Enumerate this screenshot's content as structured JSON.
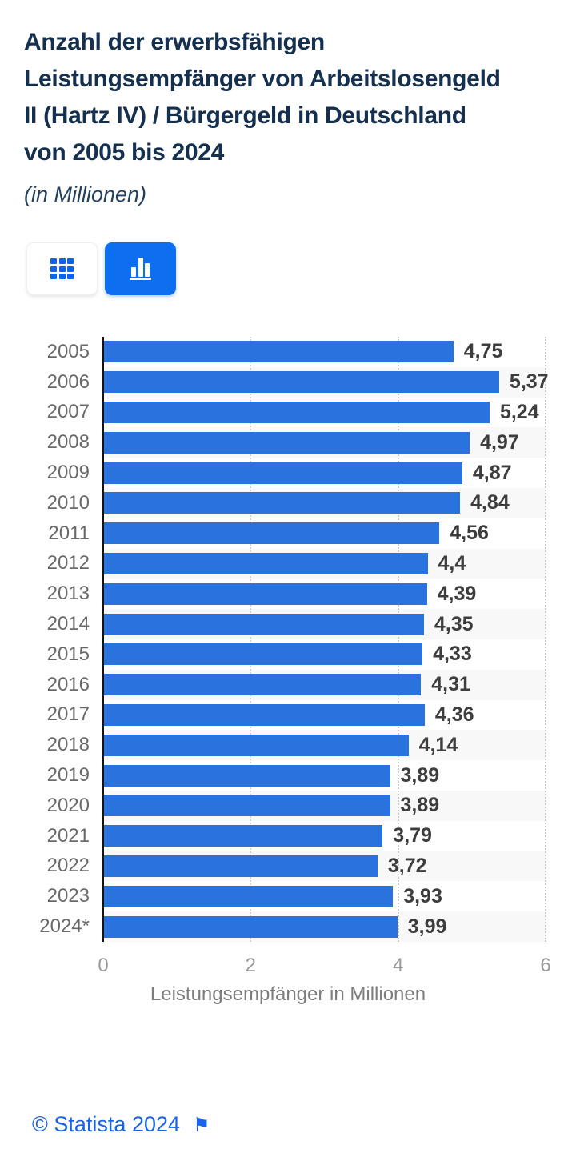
{
  "header": {
    "title": "Anzahl der erwerbsfähigen Leistungsempfänger von Arbeitslosengeld II (Hartz IV) / Bürgergeld in Deutschland von 2005 bis 2024",
    "subtitle": "(in Millionen)"
  },
  "toolbar": {
    "buttons": [
      {
        "name": "table-view",
        "icon": "grid-icon",
        "active": false
      },
      {
        "name": "chart-view",
        "icon": "bar-chart-icon",
        "active": true
      }
    ],
    "active_color": "#0d6ef0",
    "icon_color": "#0c64ee"
  },
  "chart_data": {
    "type": "bar",
    "orientation": "horizontal",
    "categories": [
      "2005",
      "2006",
      "2007",
      "2008",
      "2009",
      "2010",
      "2011",
      "2012",
      "2013",
      "2014",
      "2015",
      "2016",
      "2017",
      "2018",
      "2019",
      "2020",
      "2021",
      "2022",
      "2023",
      "2024*"
    ],
    "values": [
      4.75,
      5.37,
      5.24,
      4.97,
      4.87,
      4.84,
      4.56,
      4.4,
      4.39,
      4.35,
      4.33,
      4.31,
      4.36,
      4.14,
      3.89,
      3.89,
      3.79,
      3.72,
      3.93,
      3.99
    ],
    "value_labels": [
      "4,75",
      "5,37",
      "5,24",
      "4,97",
      "4,87",
      "4,84",
      "4,56",
      "4,4",
      "4,39",
      "4,35",
      "4,33",
      "4,31",
      "4,36",
      "4,14",
      "3,89",
      "3,89",
      "3,79",
      "3,72",
      "3,93",
      "3,99"
    ],
    "title": "",
    "xlabel": "Leistungsempfänger in Millionen",
    "ylabel": "",
    "xlim": [
      0,
      6
    ],
    "xticks": [
      0,
      2,
      4,
      6
    ],
    "grid": "vertical-dotted",
    "legend": "none",
    "bar_color": "#2a73de",
    "stripe_color": "#f8f8f8",
    "striped_rows": "every second row starting with 2006"
  },
  "footer": {
    "copyright": "© Statista 2024",
    "flag_icon": "flag-icon",
    "flag_glyph": "⚑",
    "link_color": "#1a63e8"
  }
}
